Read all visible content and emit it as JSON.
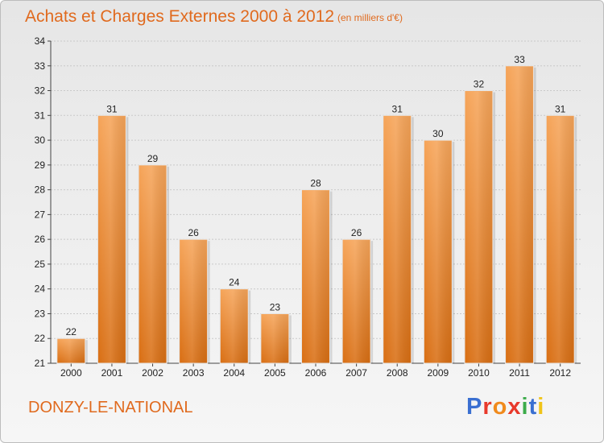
{
  "title": "Achats et Charges Externes 2000 à 2012",
  "subtitle": "(en milliers d'€)",
  "footer": {
    "city": "DONZY-LE-NATIONAL"
  },
  "logo": {
    "text": "Proxiti",
    "colors": [
      "#3a6fd1",
      "#e8392b",
      "#f08a1c",
      "#e8392b",
      "#3cab4a",
      "#3a6fd1",
      "#f0c419"
    ]
  },
  "chart_data": {
    "type": "bar",
    "title": "Achats et Charges Externes 2000 à 2012",
    "subtitle": "(en milliers d'€)",
    "xlabel": "",
    "ylabel": "",
    "categories": [
      "2000",
      "2001",
      "2002",
      "2003",
      "2004",
      "2005",
      "2006",
      "2007",
      "2008",
      "2009",
      "2010",
      "2011",
      "2012"
    ],
    "values": [
      22,
      31,
      29,
      26,
      24,
      23,
      28,
      26,
      31,
      30,
      32,
      33,
      31
    ],
    "ylim": [
      21,
      34
    ],
    "yticks": [
      21,
      22,
      23,
      24,
      25,
      26,
      27,
      28,
      29,
      30,
      31,
      32,
      33,
      34
    ],
    "grid": true,
    "bar_color": "#f08a2a"
  }
}
